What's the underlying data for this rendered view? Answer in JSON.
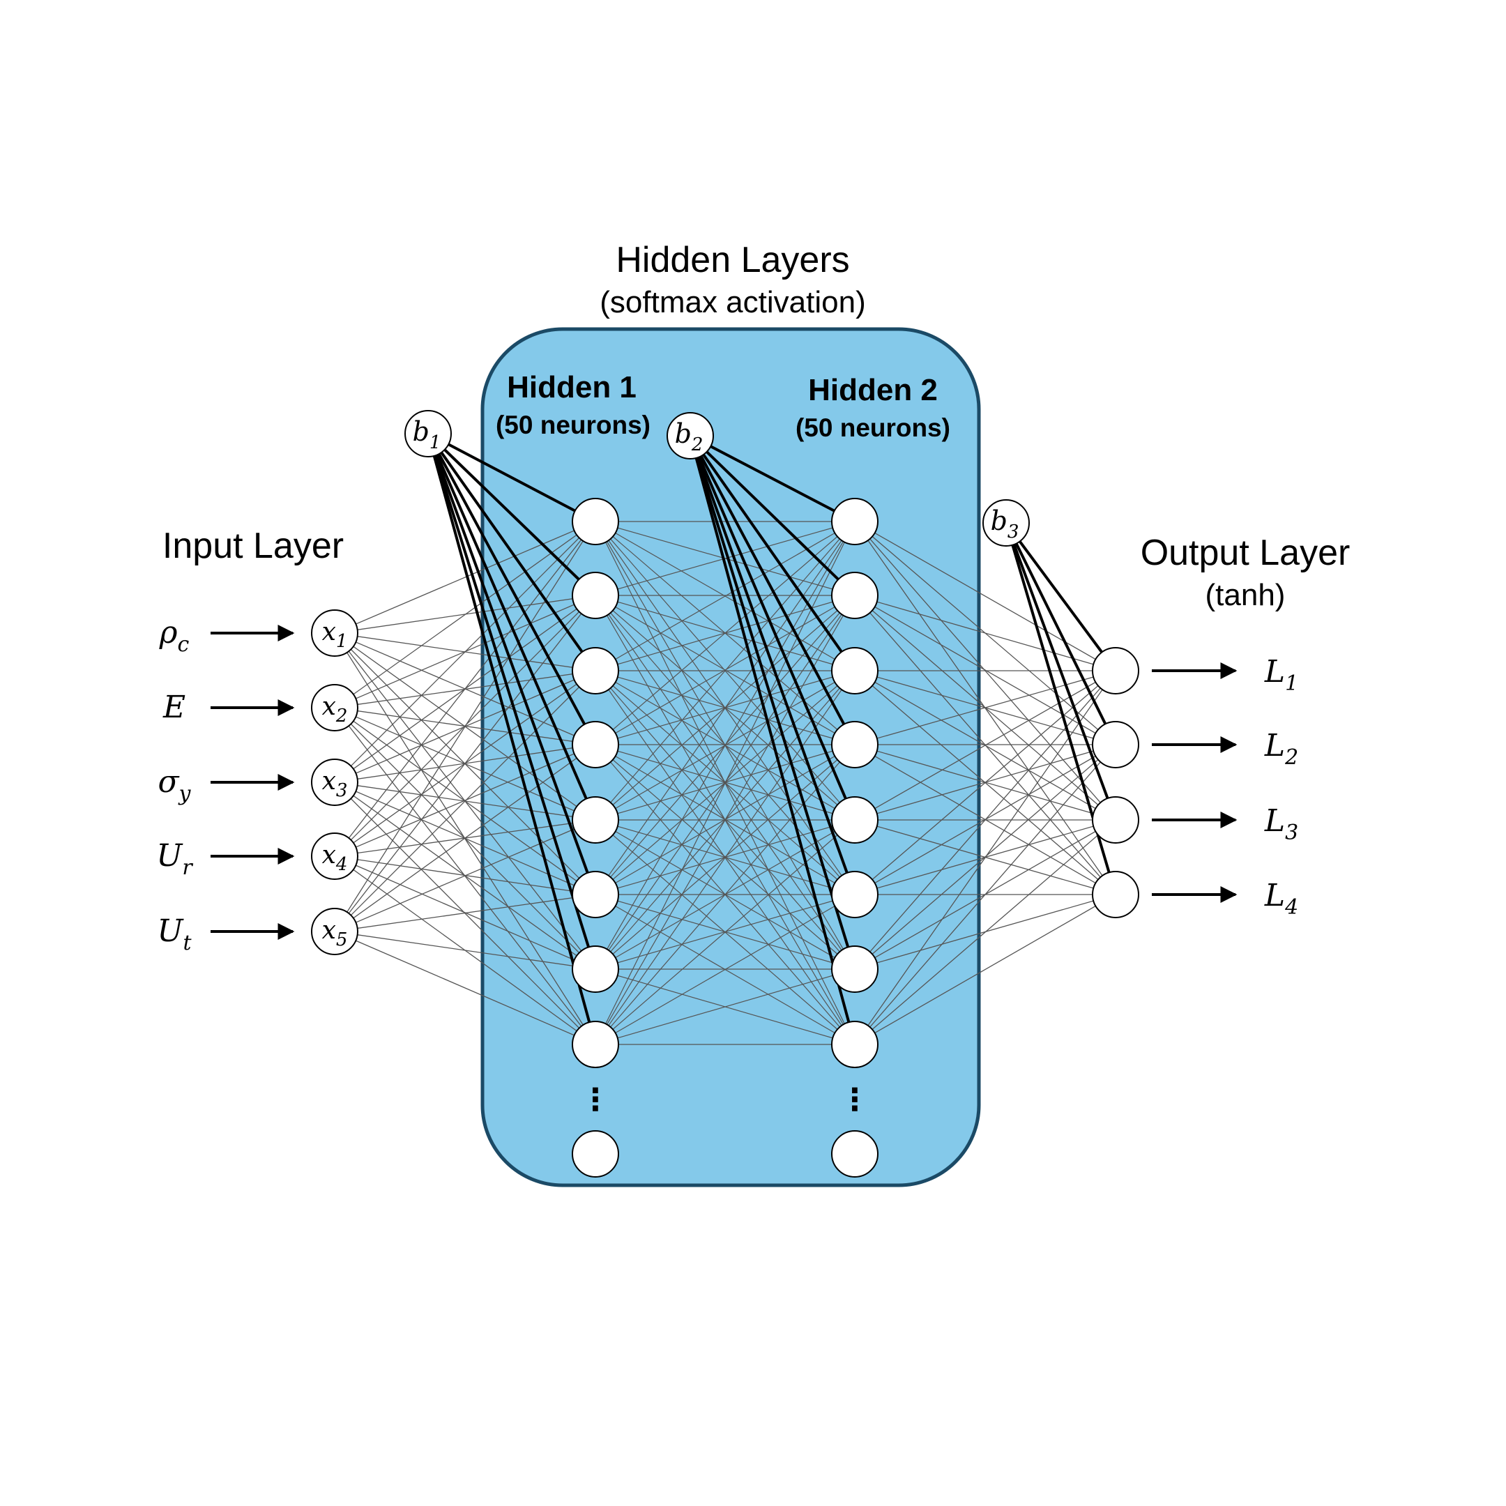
{
  "titles": {
    "hidden_layers": "Hidden Layers",
    "hidden_layers_sub": "(softmax activation)",
    "input_layer": "Input Layer",
    "output_layer": "Output Layer",
    "output_layer_sub": "(tanh)",
    "hidden1": "Hidden 1",
    "hidden1_sub": "(50 neurons)",
    "hidden2": "Hidden 2",
    "hidden2_sub": "(50 neurons)"
  },
  "inputs": [
    {
      "var": "ρ",
      "var_sub": "c",
      "node": "x",
      "node_sub": "1"
    },
    {
      "var": "E",
      "var_sub": "",
      "node": "x",
      "node_sub": "2"
    },
    {
      "var": "σ",
      "var_sub": "y",
      "node": "x",
      "node_sub": "3"
    },
    {
      "var": "U",
      "var_sub": "r",
      "node": "x",
      "node_sub": "4"
    },
    {
      "var": "U",
      "var_sub": "t",
      "node": "x",
      "node_sub": "5"
    }
  ],
  "biases": [
    {
      "label": "b",
      "sub": "1"
    },
    {
      "label": "b",
      "sub": "2"
    },
    {
      "label": "b",
      "sub": "3"
    }
  ],
  "outputs": [
    {
      "label": "L",
      "sub": "1"
    },
    {
      "label": "L",
      "sub": "2"
    },
    {
      "label": "L",
      "sub": "3"
    },
    {
      "label": "L",
      "sub": "4"
    }
  ],
  "hidden_visible_neurons": 9,
  "ellipsis": "⋮",
  "colors": {
    "panel_fill": "#84c9ea",
    "panel_stroke": "#1b4a66",
    "edge": "#555555",
    "bias_edge": "#000000"
  }
}
